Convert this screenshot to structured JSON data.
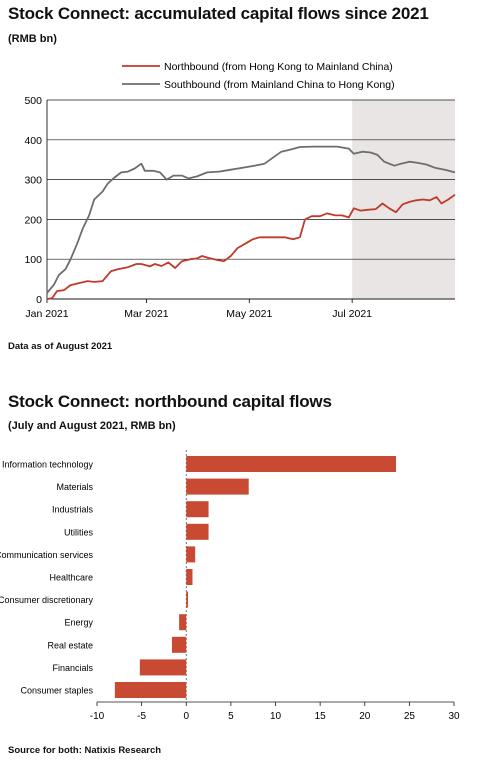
{
  "chart1": {
    "title": "Stock Connect: accumulated capital flows since 2021",
    "subtitle": "(RMB bn)",
    "note": "Data as of August 2021"
  },
  "chart2": {
    "title": "Stock Connect: northbound capital flows",
    "subtitle": "(July and August 2021, RMB bn)"
  },
  "source": "Source for both: Natixis Research",
  "colors": {
    "northbound": "#c0392b",
    "southbound": "#6d6d6d",
    "bar": "#c94a33",
    "shade": "#e9e5e5"
  },
  "chart_data": [
    {
      "type": "line",
      "title": "Stock Connect: accumulated capital flows since 2021",
      "ylabel": "RMB bn",
      "ylim": [
        0,
        500
      ],
      "yticks": [
        0,
        100,
        200,
        300,
        400,
        500
      ],
      "xlim": [
        "2021-01-01",
        "2021-08-31"
      ],
      "xticks": [
        {
          "date": "2021-01-01",
          "label": "Jan 2021"
        },
        {
          "date": "2021-03-01",
          "label": "Mar 2021"
        },
        {
          "date": "2021-05-01",
          "label": "May 2021"
        },
        {
          "date": "2021-07-01",
          "label": "Jul 2021"
        }
      ],
      "shaded_region": [
        "2021-07-01",
        "2021-08-31"
      ],
      "legend_position": "top-right",
      "series": [
        {
          "name": "Northbound (from Hong Kong to Mainland China)",
          "color": "#c0392b",
          "points": [
            [
              "2021-01-01",
              0
            ],
            [
              "2021-01-04",
              2
            ],
            [
              "2021-01-07",
              20
            ],
            [
              "2021-01-11",
              22
            ],
            [
              "2021-01-15",
              35
            ],
            [
              "2021-01-20",
              40
            ],
            [
              "2021-01-25",
              45
            ],
            [
              "2021-01-29",
              43
            ],
            [
              "2021-02-03",
              45
            ],
            [
              "2021-02-08",
              70
            ],
            [
              "2021-02-12",
              75
            ],
            [
              "2021-02-18",
              80
            ],
            [
              "2021-02-23",
              88
            ],
            [
              "2021-02-26",
              88
            ],
            [
              "2021-03-03",
              82
            ],
            [
              "2021-03-06",
              88
            ],
            [
              "2021-03-10",
              83
            ],
            [
              "2021-03-14",
              92
            ],
            [
              "2021-03-18",
              78
            ],
            [
              "2021-03-22",
              95
            ],
            [
              "2021-03-27",
              100
            ],
            [
              "2021-03-31",
              102
            ],
            [
              "2021-04-03",
              108
            ],
            [
              "2021-04-07",
              103
            ],
            [
              "2021-04-12",
              98
            ],
            [
              "2021-04-16",
              95
            ],
            [
              "2021-04-20",
              108
            ],
            [
              "2021-04-24",
              128
            ],
            [
              "2021-04-29",
              140
            ],
            [
              "2021-05-03",
              150
            ],
            [
              "2021-05-07",
              155
            ],
            [
              "2021-05-14",
              155
            ],
            [
              "2021-05-22",
              155
            ],
            [
              "2021-05-27",
              150
            ],
            [
              "2021-05-31",
              155
            ],
            [
              "2021-06-03",
              200
            ],
            [
              "2021-06-07",
              208
            ],
            [
              "2021-06-12",
              208
            ],
            [
              "2021-06-16",
              215
            ],
            [
              "2021-06-21",
              210
            ],
            [
              "2021-06-25",
              210
            ],
            [
              "2021-06-29",
              205
            ],
            [
              "2021-07-02",
              228
            ],
            [
              "2021-07-06",
              222
            ],
            [
              "2021-07-10",
              224
            ],
            [
              "2021-07-15",
              226
            ],
            [
              "2021-07-19",
              240
            ],
            [
              "2021-07-23",
              228
            ],
            [
              "2021-07-27",
              218
            ],
            [
              "2021-07-31",
              238
            ],
            [
              "2021-08-04",
              244
            ],
            [
              "2021-08-08",
              248
            ],
            [
              "2021-08-12",
              250
            ],
            [
              "2021-08-16",
              248
            ],
            [
              "2021-08-20",
              256
            ],
            [
              "2021-08-23",
              240
            ],
            [
              "2021-08-27",
              250
            ],
            [
              "2021-08-31",
              262
            ]
          ]
        },
        {
          "name": "Southbound (from Mainland China to Hong Kong)",
          "color": "#6d6d6d",
          "points": [
            [
              "2021-01-01",
              15
            ],
            [
              "2021-01-05",
              35
            ],
            [
              "2021-01-08",
              60
            ],
            [
              "2021-01-12",
              75
            ],
            [
              "2021-01-15",
              100
            ],
            [
              "2021-01-19",
              140
            ],
            [
              "2021-01-22",
              175
            ],
            [
              "2021-01-26",
              210
            ],
            [
              "2021-01-29",
              250
            ],
            [
              "2021-02-03",
              270
            ],
            [
              "2021-02-06",
              290
            ],
            [
              "2021-02-10",
              305
            ],
            [
              "2021-02-14",
              318
            ],
            [
              "2021-02-18",
              320
            ],
            [
              "2021-02-22",
              328
            ],
            [
              "2021-02-26",
              340
            ],
            [
              "2021-02-28",
              322
            ],
            [
              "2021-03-05",
              322
            ],
            [
              "2021-03-09",
              318
            ],
            [
              "2021-03-13",
              300
            ],
            [
              "2021-03-17",
              310
            ],
            [
              "2021-03-22",
              310
            ],
            [
              "2021-03-26",
              303
            ],
            [
              "2021-03-31",
              308
            ],
            [
              "2021-04-06",
              318
            ],
            [
              "2021-04-13",
              320
            ],
            [
              "2021-04-20",
              325
            ],
            [
              "2021-04-27",
              330
            ],
            [
              "2021-05-04",
              335
            ],
            [
              "2021-05-10",
              340
            ],
            [
              "2021-05-15",
              355
            ],
            [
              "2021-05-20",
              370
            ],
            [
              "2021-05-25",
              375
            ],
            [
              "2021-05-31",
              382
            ],
            [
              "2021-06-08",
              383
            ],
            [
              "2021-06-15",
              383
            ],
            [
              "2021-06-22",
              383
            ],
            [
              "2021-06-29",
              378
            ],
            [
              "2021-07-02",
              365
            ],
            [
              "2021-07-07",
              370
            ],
            [
              "2021-07-12",
              368
            ],
            [
              "2021-07-16",
              362
            ],
            [
              "2021-07-20",
              345
            ],
            [
              "2021-07-26",
              335
            ],
            [
              "2021-07-30",
              340
            ],
            [
              "2021-08-04",
              345
            ],
            [
              "2021-08-09",
              342
            ],
            [
              "2021-08-14",
              338
            ],
            [
              "2021-08-19",
              330
            ],
            [
              "2021-08-25",
              325
            ],
            [
              "2021-08-31",
              318
            ]
          ]
        }
      ]
    },
    {
      "type": "bar",
      "orientation": "horizontal",
      "title": "Stock Connect: northbound capital flows",
      "ylabel": "RMB bn",
      "xlim": [
        -10,
        30
      ],
      "xticks": [
        -10,
        -5,
        0,
        5,
        10,
        15,
        20,
        25,
        30
      ],
      "categories": [
        "Information technology",
        "Materials",
        "Industrials",
        "Utilities",
        "Communication services",
        "Healthcare",
        "Consumer discretionary",
        "Energy",
        "Real estate",
        "Financials",
        "Consumer staples"
      ],
      "values": [
        23.5,
        7,
        2.5,
        2.5,
        1.0,
        0.7,
        0.2,
        -0.8,
        -1.6,
        -5.2,
        -8.0
      ],
      "color": "#c94a33"
    }
  ]
}
